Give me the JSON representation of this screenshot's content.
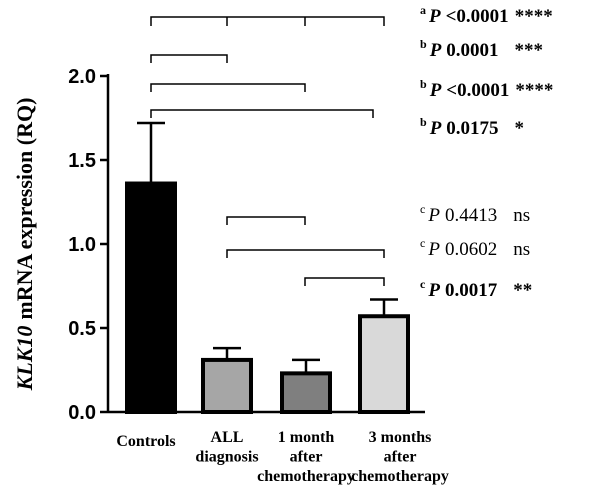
{
  "chart_data": {
    "type": "bar",
    "ylabel": {
      "gene": "KLK10",
      "rest": "mRNA expression (RQ)"
    },
    "categories": [
      [
        "Controls"
      ],
      [
        "ALL",
        "diagnosis"
      ],
      [
        "1 month",
        "after",
        "chemotherapy"
      ],
      [
        "3  months",
        "after",
        "chemotherapy"
      ]
    ],
    "values": [
      1.36,
      0.31,
      0.23,
      0.57
    ],
    "errors": [
      0.36,
      0.07,
      0.08,
      0.1
    ],
    "colors": [
      "#000000",
      "#a6a6a6",
      "#7f7f7f",
      "#d9d9d9"
    ],
    "ylim": [
      0,
      2.0
    ],
    "yticks": [
      {
        "value": 0,
        "label": "0.0"
      },
      {
        "value": 0.5,
        "label": "0.5"
      },
      {
        "value": 1.0,
        "label": "1.0"
      },
      {
        "value": 1.5,
        "label": "1.5"
      },
      {
        "value": 2.0,
        "label": "2.0"
      }
    ],
    "annotations": [
      {
        "letter": "a",
        "p": "P",
        "value": "<0.0001",
        "stars": "****",
        "bold": true
      },
      {
        "letter": "b",
        "p": "P",
        "value": "0.0001",
        "stars": "***",
        "bold": true
      },
      {
        "letter": "b",
        "p": "P",
        "value": "<0.0001",
        "stars": "****",
        "bold": true
      },
      {
        "letter": "b",
        "p": "P",
        "value": "0.0175",
        "stars": "*",
        "bold": true
      },
      {
        "letter": "c",
        "p": "P",
        "value": "0.4413",
        "stars": "ns",
        "bold": false
      },
      {
        "letter": "c",
        "p": "P",
        "value": "0.0602",
        "stars": "ns",
        "bold": false
      },
      {
        "letter": "c",
        "p": "P",
        "value": "0.0017",
        "stars": "**",
        "bold": true
      }
    ]
  }
}
